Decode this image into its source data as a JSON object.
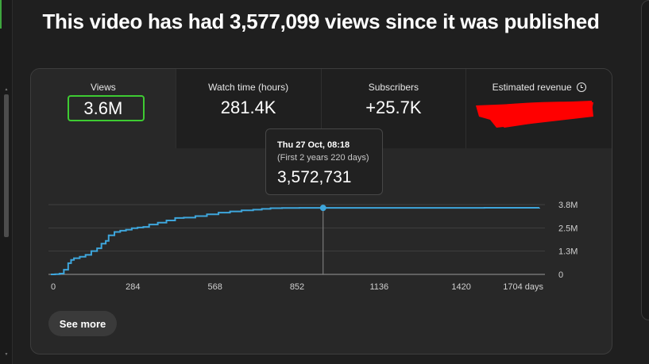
{
  "headline": "This video has had 3,577,099 views since it was published",
  "tiles": [
    {
      "label": "Views",
      "value": "3.6M"
    },
    {
      "label": "Watch time (hours)",
      "value": "281.4K"
    },
    {
      "label": "Subscribers",
      "value": "+25.7K"
    },
    {
      "label": "Estimated revenue",
      "value": ""
    }
  ],
  "tooltip": {
    "date": "Thu 27 Oct, 08:18",
    "subtitle": "(First 2 years 220 days)",
    "value": "3,572,731"
  },
  "see_more_label": "See more",
  "icons": {
    "revenue_info": "clock-icon"
  },
  "colors": {
    "line": "#3ea6dc",
    "selected_border": "#3ecb32",
    "redaction": "#ff0000"
  },
  "chart_data": {
    "type": "line",
    "x_unit": "days",
    "xticks": [
      "0",
      "284",
      "568",
      "852",
      "1136",
      "1420",
      "1704 days"
    ],
    "xtick_values": [
      0,
      284,
      568,
      852,
      1136,
      1420,
      1704
    ],
    "yticks": [
      "0",
      "1.3M",
      "2.5M",
      "3.8M"
    ],
    "ytick_values": [
      0,
      1250000,
      2500000,
      3750000
    ],
    "xlim": [
      0,
      1704
    ],
    "ylim": [
      0,
      3750000
    ],
    "series": [
      {
        "x": [
          0,
          15,
          30,
          45,
          60,
          70,
          80,
          100,
          120,
          140,
          160,
          175,
          190,
          200,
          220,
          240,
          260,
          280,
          300,
          320,
          340,
          370,
          400,
          430,
          460,
          500,
          540,
          580,
          620,
          660,
          700,
          730,
          760,
          800,
          860,
          942,
          1100,
          1300,
          1500,
          1690
        ],
        "y": [
          0,
          10000,
          40000,
          250000,
          600000,
          780000,
          870000,
          950000,
          1050000,
          1250000,
          1400000,
          1650000,
          1800000,
          2100000,
          2280000,
          2350000,
          2400000,
          2480000,
          2520000,
          2550000,
          2680000,
          2780000,
          2900000,
          3030000,
          3050000,
          3130000,
          3230000,
          3320000,
          3380000,
          3440000,
          3480000,
          3520000,
          3560000,
          3570000,
          3572000,
          3572731,
          3575000,
          3576000,
          3577000,
          3577099
        ]
      }
    ],
    "marker": {
      "x": 942,
      "y": 3572731
    },
    "grid": true,
    "legend": "none"
  }
}
